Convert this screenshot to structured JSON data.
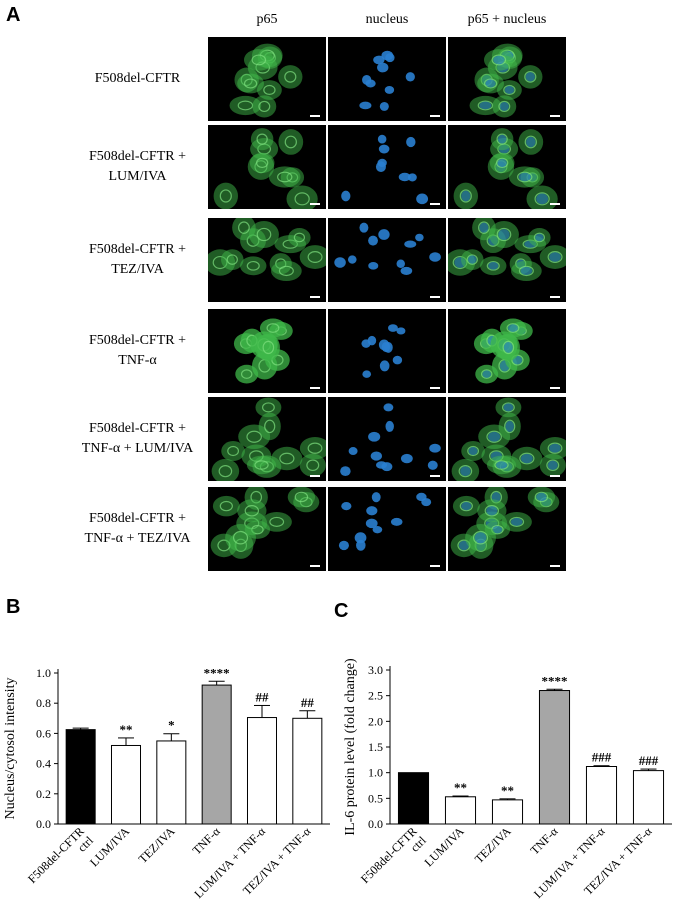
{
  "panelA": {
    "letter": "A",
    "columns": [
      "p65",
      "nucleus",
      "p65 + nucleus"
    ],
    "rows": [
      [
        "F508del-CFTR"
      ],
      [
        "F508del-CFTR +",
        "LUM/IVA"
      ],
      [
        "F508del-CFTR +",
        "TEZ/IVA"
      ],
      [
        "F508del-CFTR +",
        "TNF-α"
      ],
      [
        "F508del-CFTR +",
        "TNF-α + LUM/IVA"
      ],
      [
        "F508del-CFTR +",
        "TNF-α + TEZ/IVA"
      ]
    ],
    "colors": {
      "p65": "#3fb84a",
      "nucleus": "#2a7fd0",
      "background": "#000000"
    }
  },
  "chart_data": [
    {
      "panel_letter": "B",
      "type": "bar",
      "ylabel": "Nucleus/cytosol intensity",
      "ylim": [
        0,
        1.0
      ],
      "yticks": [
        "0.0",
        "0.2",
        "0.4",
        "0.6",
        "0.8",
        "1.0"
      ],
      "categories": [
        "F508del-CFTR ctrl",
        "LUM/IVA",
        "TEZ/IVA",
        "TNF-α",
        "LUM/IVA + TNF-α",
        "TEZ/IVA + TNF-α"
      ],
      "values": [
        0.625,
        0.52,
        0.55,
        0.92,
        0.705,
        0.7
      ],
      "errors": [
        0.01,
        0.05,
        0.048,
        0.025,
        0.08,
        0.05
      ],
      "fills": [
        "#000000",
        "#ffffff",
        "#ffffff",
        "#a6a6a6",
        "#ffffff",
        "#ffffff"
      ],
      "annotations": [
        "",
        "**",
        "*",
        "****",
        "##",
        "##"
      ]
    },
    {
      "panel_letter": "C",
      "type": "bar",
      "ylabel": "IL-6 protein level (fold change)",
      "ylim": [
        0,
        3.0
      ],
      "yticks": [
        "0.0",
        "0.5",
        "1.0",
        "1.5",
        "2.0",
        "2.5",
        "3.0"
      ],
      "categories": [
        "F508del-CFTR ctrl",
        "LUM/IVA",
        "TEZ/IVA",
        "TNF-α",
        "LUM/IVA + TNF-α",
        "TEZ/IVA + TNF-α"
      ],
      "values": [
        1.0,
        0.53,
        0.47,
        2.6,
        1.12,
        1.04
      ],
      "errors": [
        0.0,
        0.015,
        0.02,
        0.025,
        0.015,
        0.03
      ],
      "fills": [
        "#000000",
        "#ffffff",
        "#ffffff",
        "#a6a6a6",
        "#ffffff",
        "#ffffff"
      ],
      "annotations": [
        "",
        "**",
        "**",
        "****",
        "###",
        "###"
      ]
    }
  ]
}
